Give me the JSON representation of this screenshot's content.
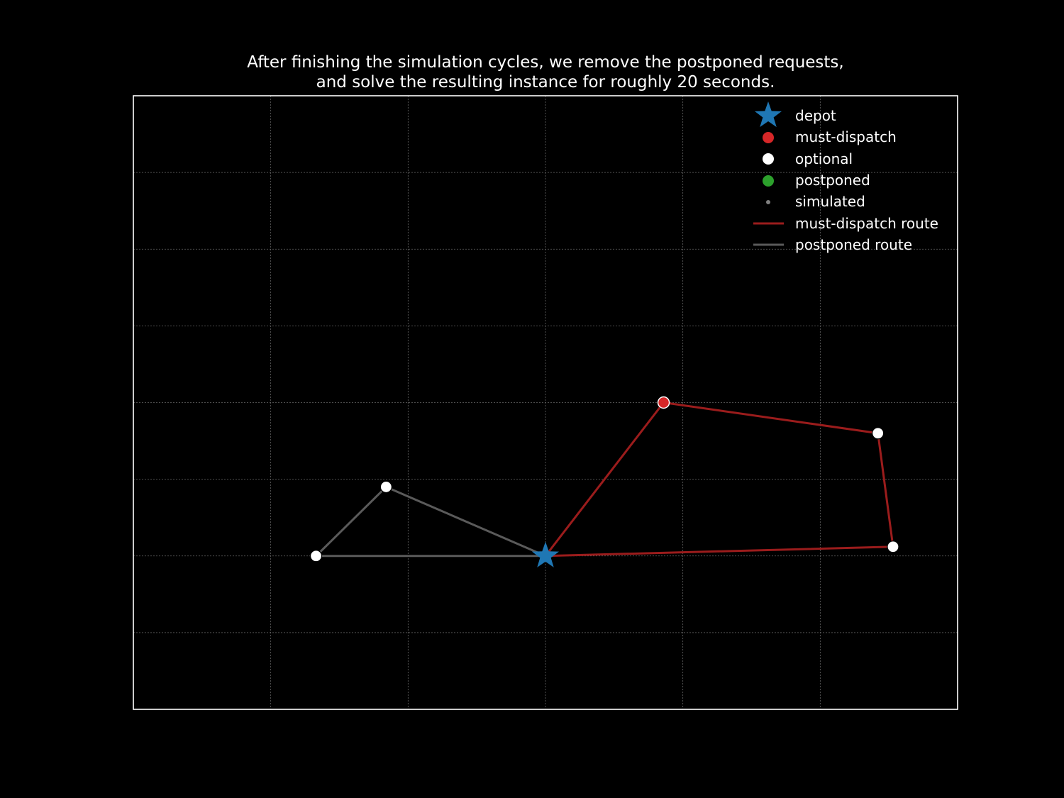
{
  "chart_data": {
    "type": "scatter",
    "title_lines": [
      "After finishing the simulation cycles, we remove the postponed requests,",
      "and solve the resulting instance for roughly 20 seconds."
    ],
    "xlim": [
      -3,
      3
    ],
    "ylim": [
      -1,
      3
    ],
    "x_gridlines": [
      -2,
      -1,
      0,
      1,
      2
    ],
    "y_gridlines": [
      -0.5,
      0,
      0.5,
      1,
      1.5,
      2,
      2.5
    ],
    "grid": true,
    "ticks_visible": false,
    "legend_position": "top-right",
    "colors": {
      "background": "#000000",
      "axes_frame": "#ffffff",
      "grid": "#666666",
      "depot": "#1f77b4",
      "must_dispatch": "#d62728",
      "optional": "#ffffff",
      "postponed": "#2ca02c",
      "simulated": "#808080",
      "must_dispatch_route": "#9b1c1c",
      "postponed_route": "#5a5a5a"
    },
    "depot": {
      "x": 0.0,
      "y": 0.0
    },
    "must_dispatch": [
      {
        "x": 0.86,
        "y": 1.0
      }
    ],
    "optional": [
      {
        "x": -1.16,
        "y": 0.45
      },
      {
        "x": -1.67,
        "y": 0.0
      },
      {
        "x": 2.42,
        "y": 0.8
      },
      {
        "x": 2.53,
        "y": 0.06
      }
    ],
    "postponed": [],
    "simulated": [],
    "routes": [
      {
        "kind": "must-dispatch route",
        "points": [
          [
            0.0,
            0.0
          ],
          [
            0.86,
            1.0
          ],
          [
            2.42,
            0.8
          ],
          [
            2.53,
            0.06
          ],
          [
            0.0,
            0.0
          ]
        ]
      },
      {
        "kind": "postponed route",
        "points": [
          [
            0.0,
            0.0
          ],
          [
            -1.16,
            0.45
          ],
          [
            -1.67,
            0.0
          ],
          [
            0.0,
            0.0
          ]
        ]
      }
    ],
    "legend": [
      {
        "label": "depot",
        "marker": "star"
      },
      {
        "label": "must-dispatch",
        "marker": "dot-red"
      },
      {
        "label": "optional",
        "marker": "dot-white"
      },
      {
        "label": "postponed",
        "marker": "dot-green"
      },
      {
        "label": "simulated",
        "marker": "dot-small-gray"
      },
      {
        "label": "must-dispatch route",
        "marker": "line-red"
      },
      {
        "label": "postponed route",
        "marker": "line-gray"
      }
    ]
  }
}
